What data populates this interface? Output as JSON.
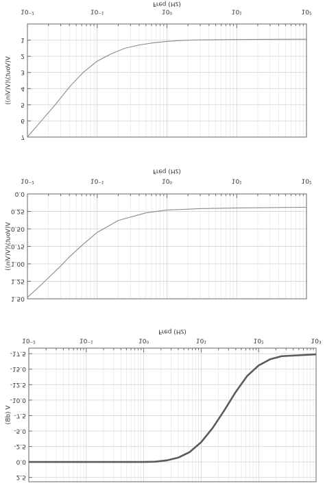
{
  "chart_data": [
    {
      "type": "line",
      "xlabel": "Freq (Hz)",
      "ylabel": "V(Vout)/(V(Vin))",
      "logx": true,
      "grid": true,
      "xlim": [
        0.01,
        100
      ],
      "xticks": [
        {
          "value": 0.01,
          "label": "10⁻²"
        },
        {
          "value": 0.1,
          "label": "10⁻¹"
        },
        {
          "value": 1,
          "label": "10⁰"
        },
        {
          "value": 10,
          "label": "10¹"
        },
        {
          "value": 100,
          "label": "10²"
        }
      ],
      "ylim": [
        0,
        7
      ],
      "yticks": [
        1,
        2,
        3,
        4,
        5,
        6,
        7
      ],
      "x": [
        0.01,
        0.0158,
        0.025,
        0.04,
        0.063,
        0.1,
        0.158,
        0.25,
        0.4,
        0.63,
        1,
        1.58,
        2.5,
        10,
        100
      ],
      "series": [
        {
          "name": "V(Vout)",
          "color": "#8a8a8a",
          "values": [
            7.0,
            6.0,
            5.0,
            3.9,
            3.0,
            2.3,
            1.85,
            1.5,
            1.3,
            1.17,
            1.08,
            1.02,
            0.99,
            0.96,
            0.94
          ]
        }
      ]
    },
    {
      "type": "line",
      "xlabel": "Freq (Hz)",
      "ylabel": "V(Vout)/(V(Vin))",
      "logx": true,
      "grid": true,
      "xlim": [
        0.01,
        100
      ],
      "xticks": [
        {
          "value": 0.01,
          "label": "10⁻²"
        },
        {
          "value": 0.1,
          "label": "10⁻¹"
        },
        {
          "value": 1,
          "label": "10⁰"
        },
        {
          "value": 10,
          "label": "10¹"
        },
        {
          "value": 100,
          "label": "10²"
        }
      ],
      "ylim": [
        0,
        1.5
      ],
      "yticks": [
        {
          "value": 0,
          "label": "0.0"
        },
        {
          "value": 0.25,
          "label": "0.25"
        },
        {
          "value": 0.5,
          "label": "0.50"
        },
        {
          "value": 0.75,
          "label": "0.75"
        },
        {
          "value": 1,
          "label": "1.00"
        },
        {
          "value": 1.25,
          "label": "1.25"
        },
        {
          "value": 1.5,
          "label": "1.50"
        }
      ],
      "x": [
        0.01,
        0.015,
        0.02,
        0.03,
        0.04,
        0.063,
        0.1,
        0.2,
        0.5,
        1,
        3,
        10,
        100
      ],
      "series": [
        {
          "name": "V(Vout)",
          "color": "#8a8a8a",
          "values": [
            1.48,
            1.32,
            1.2,
            1.03,
            0.9,
            0.72,
            0.55,
            0.38,
            0.27,
            0.23,
            0.21,
            0.2,
            0.19
          ]
        }
      ]
    },
    {
      "type": "line",
      "xlabel": "Freq (Hz)",
      "ylabel": "V (dB)",
      "logx": true,
      "grid": true,
      "xlim": [
        0.01,
        1000
      ],
      "xticks": [
        {
          "value": 0.01,
          "label": "10⁻²"
        },
        {
          "value": 0.1,
          "label": "10⁻¹"
        },
        {
          "value": 1,
          "label": "10⁰"
        },
        {
          "value": 10,
          "label": "10¹"
        },
        {
          "value": 100,
          "label": "10²"
        },
        {
          "value": 1000,
          "label": "10³"
        }
      ],
      "ylim": [
        -18.4,
        3.2
      ],
      "yticks": [
        {
          "value": -17.5,
          "label": "-17.5"
        },
        {
          "value": -15,
          "label": "-15.0"
        },
        {
          "value": -12.5,
          "label": "-12.5"
        },
        {
          "value": -10,
          "label": "-10.0"
        },
        {
          "value": -7.5,
          "label": "-7.5"
        },
        {
          "value": -5,
          "label": "-5.0"
        },
        {
          "value": -2.5,
          "label": "-2.5"
        },
        {
          "value": 0,
          "label": "0.0"
        },
        {
          "value": 2.5,
          "label": "2.5"
        }
      ],
      "x": [
        0.01,
        0.1,
        1,
        1.585,
        2.512,
        3.981,
        6.31,
        10,
        15.85,
        25.12,
        39.81,
        63.1,
        100,
        158.5,
        251.2,
        1000
      ],
      "series": [
        {
          "name": "V(dB)",
          "color": "#5a5a5a",
          "values": [
            0,
            0,
            0,
            -0.05,
            -0.25,
            -0.7,
            -1.6,
            -3.2,
            -5.5,
            -8.3,
            -11.3,
            -13.9,
            -15.6,
            -16.6,
            -17.1,
            -17.4
          ]
        }
      ]
    }
  ]
}
